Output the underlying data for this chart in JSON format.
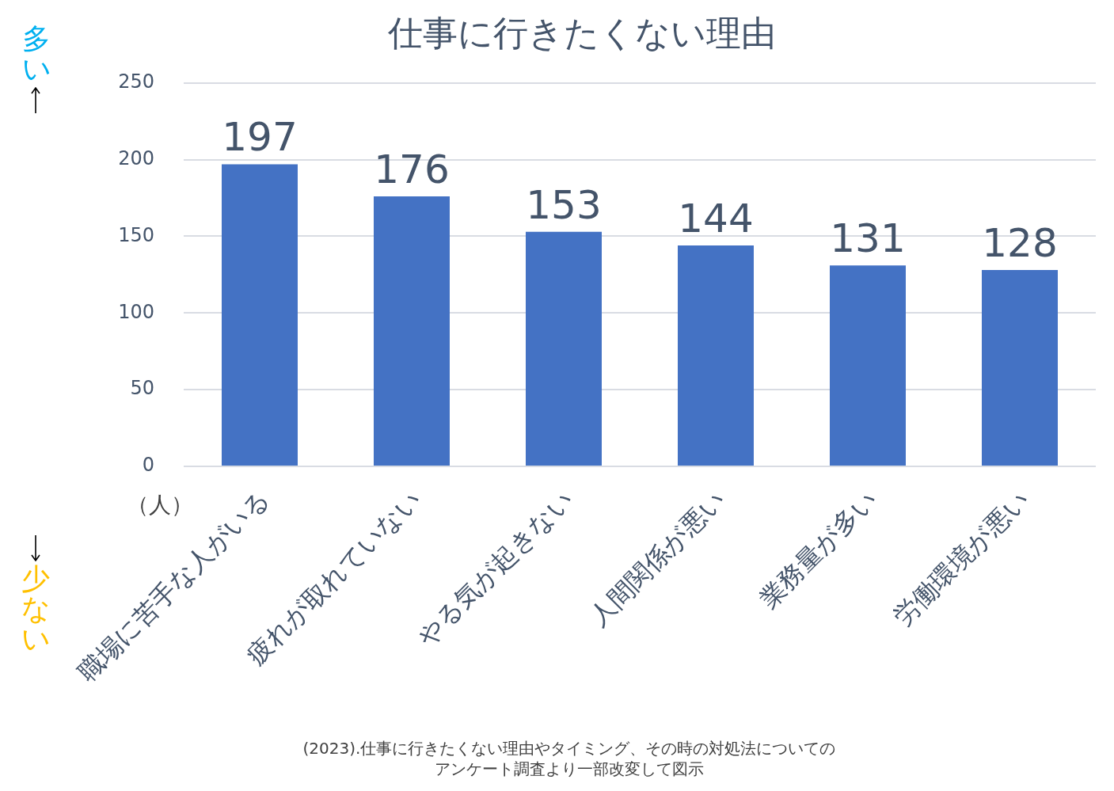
{
  "chart_data": {
    "type": "bar",
    "title": "仕事に行きたくない理由",
    "ylabel": "（人）",
    "categories": [
      "職場に苦手な人がいる",
      "疲れが取れていない",
      "やる気が起きない",
      "人間関係が悪い",
      "業務量が多い",
      "労働環境が悪い"
    ],
    "values": [
      197,
      176,
      153,
      144,
      131,
      128
    ],
    "color": "#4472c4",
    "ylim": [
      0,
      250
    ],
    "yticks": [
      0,
      50,
      100,
      150,
      200,
      250
    ],
    "grid": "y",
    "data_labels": true,
    "annotations": [
      "多い",
      "少ない",
      "(2023).仕事に行きたくない理由やタイミング、その時の対処法についてのアンケート調査より一部改変して図示"
    ]
  }
}
